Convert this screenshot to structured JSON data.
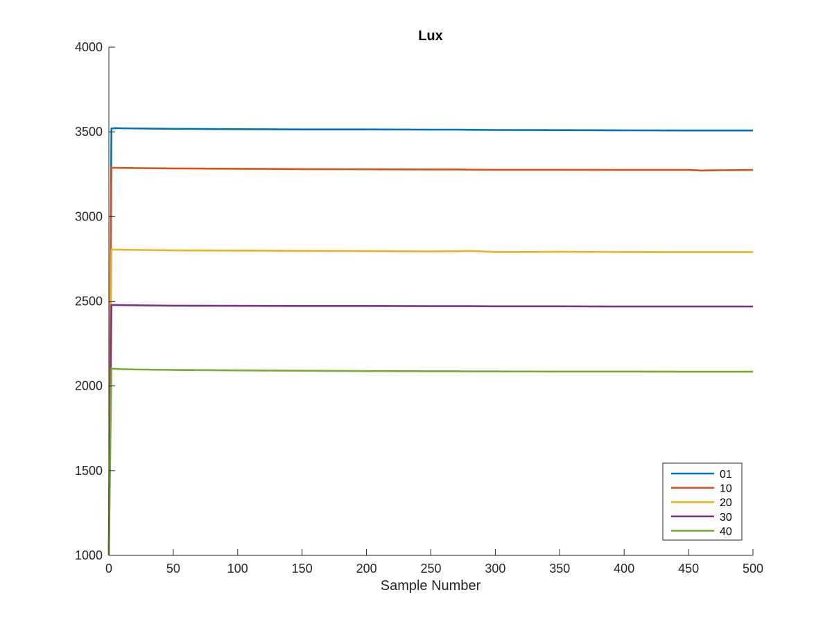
{
  "chart_data": {
    "type": "line",
    "title": "Lux",
    "xlabel": "Sample Number",
    "ylabel": "",
    "xlim": [
      0,
      500
    ],
    "ylim": [
      1000,
      4000
    ],
    "xticks": [
      0,
      50,
      100,
      150,
      200,
      250,
      300,
      350,
      400,
      450,
      500
    ],
    "yticks": [
      1000,
      1500,
      2000,
      2500,
      3000,
      3500,
      4000
    ],
    "grid": false,
    "legend_position": "bottom-right",
    "x": [
      0,
      2,
      5,
      10,
      25,
      50,
      100,
      150,
      200,
      250,
      270,
      280,
      300,
      350,
      400,
      450,
      460,
      500
    ],
    "series": [
      {
        "name": "01",
        "color": "#0072BD",
        "values": [
          1000,
          3520,
          3522,
          3521,
          3520,
          3518,
          3516,
          3514,
          3514,
          3513,
          3513,
          3512,
          3511,
          3510,
          3509,
          3508,
          3508,
          3508
        ]
      },
      {
        "name": "10",
        "color": "#D95319",
        "values": [
          1000,
          3288,
          3288,
          3287,
          3286,
          3284,
          3282,
          3280,
          3279,
          3278,
          3278,
          3277,
          3276,
          3276,
          3275,
          3275,
          3272,
          3275
        ]
      },
      {
        "name": "20",
        "color": "#EDB120",
        "values": [
          1000,
          2805,
          2805,
          2804,
          2803,
          2801,
          2799,
          2797,
          2796,
          2794,
          2795,
          2797,
          2791,
          2792,
          2791,
          2790,
          2790,
          2790
        ]
      },
      {
        "name": "30",
        "color": "#7E2F8E",
        "values": [
          1000,
          2478,
          2478,
          2477,
          2476,
          2474,
          2473,
          2472,
          2472,
          2471,
          2471,
          2471,
          2470,
          2470,
          2469,
          2469,
          2469,
          2469
        ]
      },
      {
        "name": "40",
        "color": "#77AC30",
        "values": [
          1000,
          2102,
          2101,
          2099,
          2097,
          2095,
          2092,
          2090,
          2088,
          2087,
          2087,
          2086,
          2086,
          2085,
          2085,
          2084,
          2084,
          2084
        ]
      }
    ]
  }
}
